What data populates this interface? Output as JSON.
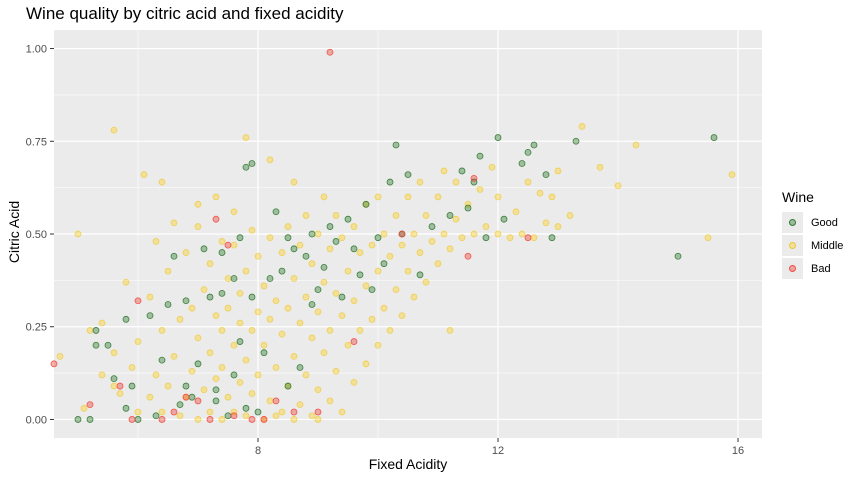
{
  "chart_data": {
    "type": "scatter",
    "title": "Wine quality by citric acid and fixed acidity",
    "xlabel": "Fixed Acidity",
    "ylabel": "Citric Acid",
    "xlim": [
      4.6,
      16.4
    ],
    "ylim": [
      -0.05,
      1.05
    ],
    "x_ticks": [
      8,
      12,
      16
    ],
    "y_ticks": [
      0.0,
      0.25,
      0.5,
      0.75,
      1.0
    ],
    "x_tick_labels": [
      "8",
      "12",
      "16"
    ],
    "y_tick_labels": [
      "0.00",
      "0.25",
      "0.50",
      "0.75",
      "1.00"
    ],
    "grid": true,
    "legend": {
      "title": "Wine",
      "position": "right",
      "entries": [
        "Good",
        "Middle",
        "Bad"
      ]
    },
    "colors": {
      "Good": "#267326",
      "Middle": "#ffd21f",
      "Bad": "#f0382e",
      "panel": "#ebebeb",
      "grid": "#ffffff"
    },
    "series": [
      {
        "name": "Good",
        "points": [
          [
            5.0,
            0.0
          ],
          [
            5.2,
            0.0
          ],
          [
            5.3,
            0.2
          ],
          [
            5.3,
            0.24
          ],
          [
            5.5,
            0.2
          ],
          [
            5.6,
            0.11
          ],
          [
            5.8,
            0.03
          ],
          [
            5.8,
            0.27
          ],
          [
            5.9,
            0.09
          ],
          [
            6.0,
            0.0
          ],
          [
            6.2,
            0.28
          ],
          [
            6.3,
            0.01
          ],
          [
            6.4,
            0.16
          ],
          [
            6.5,
            0.31
          ],
          [
            6.6,
            0.44
          ],
          [
            6.7,
            0.04
          ],
          [
            6.8,
            0.09
          ],
          [
            6.8,
            0.32
          ],
          [
            6.9,
            0.06
          ],
          [
            7.0,
            0.15
          ],
          [
            7.1,
            0.46
          ],
          [
            7.2,
            0.33
          ],
          [
            7.3,
            0.05
          ],
          [
            7.3,
            0.08
          ],
          [
            7.4,
            0.34
          ],
          [
            7.4,
            0.45
          ],
          [
            7.5,
            0.01
          ],
          [
            7.6,
            0.12
          ],
          [
            7.6,
            0.38
          ],
          [
            7.7,
            0.21
          ],
          [
            7.7,
            0.49
          ],
          [
            7.8,
            0.03
          ],
          [
            7.8,
            0.68
          ],
          [
            7.9,
            0.69
          ],
          [
            7.9,
            0.33
          ],
          [
            8.0,
            0.02
          ],
          [
            8.1,
            0.18
          ],
          [
            8.2,
            0.38
          ],
          [
            8.3,
            0.56
          ],
          [
            8.4,
            0.4
          ],
          [
            8.5,
            0.09
          ],
          [
            8.5,
            0.49
          ],
          [
            8.6,
            0.46
          ],
          [
            8.7,
            0.14
          ],
          [
            8.8,
            0.44
          ],
          [
            8.9,
            0.31
          ],
          [
            8.9,
            0.5
          ],
          [
            9.0,
            0.35
          ],
          [
            9.1,
            0.41
          ],
          [
            9.2,
            0.52
          ],
          [
            9.3,
            0.48
          ],
          [
            9.4,
            0.33
          ],
          [
            9.5,
            0.54
          ],
          [
            9.6,
            0.46
          ],
          [
            9.7,
            0.39
          ],
          [
            9.8,
            0.58
          ],
          [
            9.9,
            0.35
          ],
          [
            10.0,
            0.49
          ],
          [
            10.1,
            0.42
          ],
          [
            10.2,
            0.64
          ],
          [
            10.3,
            0.74
          ],
          [
            10.4,
            0.5
          ],
          [
            10.5,
            0.66
          ],
          [
            10.7,
            0.39
          ],
          [
            10.9,
            0.52
          ],
          [
            11.2,
            0.55
          ],
          [
            11.4,
            0.67
          ],
          [
            11.5,
            0.57
          ],
          [
            11.6,
            0.64
          ],
          [
            11.7,
            0.71
          ],
          [
            11.8,
            0.49
          ],
          [
            12.0,
            0.76
          ],
          [
            12.1,
            0.54
          ],
          [
            12.4,
            0.69
          ],
          [
            12.5,
            0.72
          ],
          [
            12.6,
            0.74
          ],
          [
            12.8,
            0.66
          ],
          [
            12.9,
            0.49
          ],
          [
            13.3,
            0.75
          ],
          [
            15.0,
            0.44
          ],
          [
            15.6,
            0.76
          ]
        ]
      },
      {
        "name": "Middle",
        "points": [
          [
            4.7,
            0.17
          ],
          [
            5.0,
            0.5
          ],
          [
            5.1,
            0.03
          ],
          [
            5.2,
            0.24
          ],
          [
            5.4,
            0.12
          ],
          [
            5.4,
            0.26
          ],
          [
            5.6,
            0.09
          ],
          [
            5.6,
            0.18
          ],
          [
            5.7,
            0.07
          ],
          [
            5.8,
            0.37
          ],
          [
            5.9,
            0.14
          ],
          [
            6.0,
            0.02
          ],
          [
            6.0,
            0.21
          ],
          [
            6.1,
            0.66
          ],
          [
            6.2,
            0.06
          ],
          [
            6.2,
            0.33
          ],
          [
            6.3,
            0.12
          ],
          [
            6.3,
            0.48
          ],
          [
            6.4,
            0.02
          ],
          [
            6.4,
            0.24
          ],
          [
            6.5,
            0.09
          ],
          [
            6.5,
            0.4
          ],
          [
            6.6,
            0.17
          ],
          [
            6.6,
            0.53
          ],
          [
            6.7,
            0.01
          ],
          [
            6.7,
            0.27
          ],
          [
            6.8,
            0.06
          ],
          [
            6.8,
            0.45
          ],
          [
            6.9,
            0.13
          ],
          [
            6.9,
            0.3
          ],
          [
            7.0,
            0.0
          ],
          [
            7.0,
            0.22
          ],
          [
            7.0,
            0.52
          ],
          [
            7.1,
            0.08
          ],
          [
            7.1,
            0.35
          ],
          [
            7.2,
            0.02
          ],
          [
            7.2,
            0.18
          ],
          [
            7.2,
            0.42
          ],
          [
            7.3,
            0.11
          ],
          [
            7.3,
            0.28
          ],
          [
            7.3,
            0.6
          ],
          [
            7.4,
            0.0
          ],
          [
            7.4,
            0.14
          ],
          [
            7.4,
            0.24
          ],
          [
            7.4,
            0.48
          ],
          [
            7.5,
            0.06
          ],
          [
            7.5,
            0.3
          ],
          [
            7.5,
            0.38
          ],
          [
            7.6,
            0.02
          ],
          [
            7.6,
            0.2
          ],
          [
            7.6,
            0.47
          ],
          [
            7.6,
            0.56
          ],
          [
            7.7,
            0.1
          ],
          [
            7.7,
            0.26
          ],
          [
            7.7,
            0.34
          ],
          [
            7.8,
            0.01
          ],
          [
            7.8,
            0.16
          ],
          [
            7.8,
            0.4
          ],
          [
            7.8,
            0.76
          ],
          [
            7.9,
            0.07
          ],
          [
            7.9,
            0.24
          ],
          [
            7.9,
            0.51
          ],
          [
            8.0,
            0.12
          ],
          [
            8.0,
            0.29
          ],
          [
            8.0,
            0.44
          ],
          [
            8.1,
            0.0
          ],
          [
            8.1,
            0.2
          ],
          [
            8.1,
            0.36
          ],
          [
            8.2,
            0.05
          ],
          [
            8.2,
            0.27
          ],
          [
            8.2,
            0.49
          ],
          [
            8.2,
            0.7
          ],
          [
            8.3,
            0.14
          ],
          [
            8.3,
            0.32
          ],
          [
            8.4,
            0.02
          ],
          [
            8.4,
            0.23
          ],
          [
            8.4,
            0.45
          ],
          [
            8.5,
            0.09
          ],
          [
            8.5,
            0.3
          ],
          [
            8.5,
            0.52
          ],
          [
            8.6,
            0.17
          ],
          [
            8.6,
            0.38
          ],
          [
            8.6,
            0.64
          ],
          [
            8.7,
            0.04
          ],
          [
            8.7,
            0.26
          ],
          [
            8.7,
            0.47
          ],
          [
            8.8,
            0.12
          ],
          [
            8.8,
            0.33
          ],
          [
            8.8,
            0.55
          ],
          [
            8.9,
            0.01
          ],
          [
            8.9,
            0.22
          ],
          [
            8.9,
            0.42
          ],
          [
            9.0,
            0.08
          ],
          [
            9.0,
            0.29
          ],
          [
            9.0,
            0.5
          ],
          [
            9.1,
            0.18
          ],
          [
            9.1,
            0.37
          ],
          [
            9.1,
            0.6
          ],
          [
            9.2,
            0.05
          ],
          [
            9.2,
            0.24
          ],
          [
            9.2,
            0.46
          ],
          [
            9.3,
            0.13
          ],
          [
            9.3,
            0.34
          ],
          [
            9.3,
            0.55
          ],
          [
            9.4,
            0.02
          ],
          [
            9.4,
            0.28
          ],
          [
            9.4,
            0.49
          ],
          [
            9.5,
            0.2
          ],
          [
            9.5,
            0.4
          ],
          [
            9.6,
            0.1
          ],
          [
            9.6,
            0.32
          ],
          [
            9.6,
            0.52
          ],
          [
            9.7,
            0.24
          ],
          [
            9.7,
            0.45
          ],
          [
            9.8,
            0.15
          ],
          [
            9.8,
            0.36
          ],
          [
            9.8,
            0.58
          ],
          [
            9.9,
            0.27
          ],
          [
            9.9,
            0.47
          ],
          [
            10.0,
            0.2
          ],
          [
            10.0,
            0.4
          ],
          [
            10.0,
            0.6
          ],
          [
            10.1,
            0.3
          ],
          [
            10.1,
            0.5
          ],
          [
            10.2,
            0.24
          ],
          [
            10.2,
            0.44
          ],
          [
            10.3,
            0.35
          ],
          [
            10.3,
            0.55
          ],
          [
            10.4,
            0.28
          ],
          [
            10.4,
            0.47
          ],
          [
            10.5,
            0.4
          ],
          [
            10.5,
            0.6
          ],
          [
            10.6,
            0.33
          ],
          [
            10.6,
            0.5
          ],
          [
            10.7,
            0.45
          ],
          [
            10.7,
            0.64
          ],
          [
            10.8,
            0.37
          ],
          [
            10.8,
            0.55
          ],
          [
            10.9,
            0.48
          ],
          [
            11.0,
            0.42
          ],
          [
            11.0,
            0.6
          ],
          [
            11.1,
            0.5
          ],
          [
            11.1,
            0.67
          ],
          [
            11.2,
            0.24
          ],
          [
            11.2,
            0.46
          ],
          [
            11.3,
            0.54
          ],
          [
            11.3,
            0.64
          ],
          [
            11.4,
            0.49
          ],
          [
            11.5,
            0.58
          ],
          [
            11.6,
            0.5
          ],
          [
            11.7,
            0.62
          ],
          [
            11.8,
            0.52
          ],
          [
            11.9,
            0.68
          ],
          [
            12.0,
            0.5
          ],
          [
            12.0,
            0.6
          ],
          [
            12.2,
            0.49
          ],
          [
            12.3,
            0.56
          ],
          [
            12.4,
            0.5
          ],
          [
            12.5,
            0.64
          ],
          [
            12.6,
            0.49
          ],
          [
            12.7,
            0.61
          ],
          [
            12.8,
            0.53
          ],
          [
            12.9,
            0.6
          ],
          [
            13.0,
            0.52
          ],
          [
            13.0,
            0.67
          ],
          [
            13.2,
            0.55
          ],
          [
            13.4,
            0.79
          ],
          [
            13.7,
            0.68
          ],
          [
            14.0,
            0.63
          ],
          [
            14.3,
            0.74
          ],
          [
            15.5,
            0.49
          ],
          [
            15.9,
            0.66
          ],
          [
            5.6,
            0.78
          ],
          [
            6.4,
            0.64
          ],
          [
            9.0,
            0.0
          ],
          [
            8.6,
            0.0
          ],
          [
            8.3,
            0.01
          ],
          [
            7.0,
            0.58
          ]
        ]
      },
      {
        "name": "Bad",
        "points": [
          [
            4.6,
            0.15
          ],
          [
            5.2,
            0.04
          ],
          [
            5.7,
            0.09
          ],
          [
            5.9,
            0.0
          ],
          [
            6.0,
            0.32
          ],
          [
            6.4,
            0.0
          ],
          [
            6.6,
            0.02
          ],
          [
            6.8,
            0.06
          ],
          [
            7.0,
            0.05
          ],
          [
            7.2,
            0.0
          ],
          [
            7.3,
            0.54
          ],
          [
            7.5,
            0.47
          ],
          [
            7.6,
            0.01
          ],
          [
            7.9,
            0.0
          ],
          [
            8.1,
            0.0
          ],
          [
            8.3,
            0.05
          ],
          [
            8.6,
            0.02
          ],
          [
            9.0,
            0.02
          ],
          [
            9.2,
            0.99
          ],
          [
            9.6,
            0.21
          ],
          [
            10.4,
            0.5
          ],
          [
            11.5,
            0.44
          ],
          [
            11.6,
            0.65
          ],
          [
            12.5,
            0.49
          ]
        ]
      }
    ]
  }
}
